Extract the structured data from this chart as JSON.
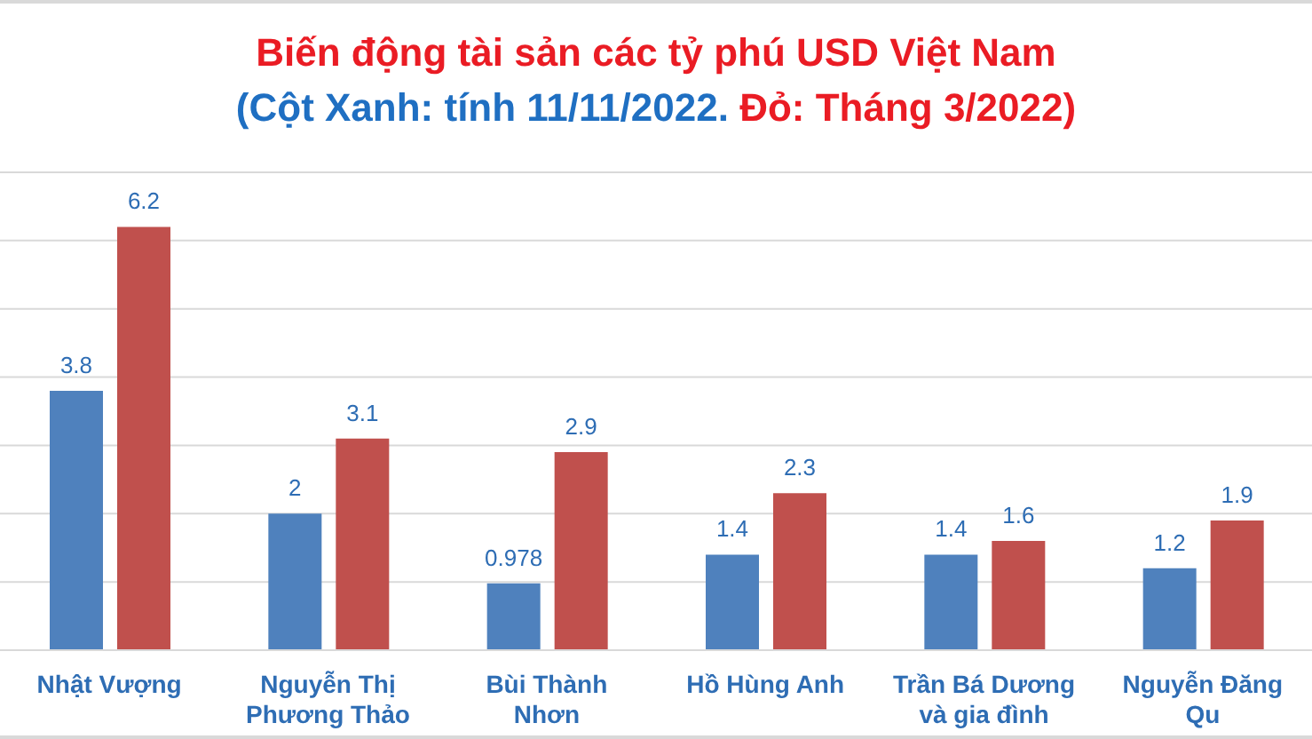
{
  "chart_data": {
    "type": "bar",
    "title": "Biến động tài sản các tỷ phú USD Việt Nam",
    "subtitle": "(Cột Xanh: tính 11/11/2022. Đỏ: Tháng 3/2022)",
    "categories": [
      "Nhật Vượng",
      "Nguyễn Thị Phương Thảo",
      "Bùi Thành Nhơn",
      "Hồ Hùng Anh",
      "Trần Bá Dương và gia đình",
      "Nguyễn Đăng Qu"
    ],
    "series": [
      {
        "color": "#4f81bd",
        "values": [
          3.8,
          2,
          0.978,
          1.4,
          1.4,
          1.2
        ]
      },
      {
        "color": "#c0504d",
        "values": [
          6.2,
          3.1,
          2.9,
          2.3,
          1.6,
          1.9
        ]
      }
    ],
    "ylim": [
      0,
      7
    ],
    "yticks": [
      {
        "value": 0,
        "label": null
      },
      {
        "value": 1,
        "label": null
      },
      {
        "value": 2,
        "label": null
      },
      {
        "value": 3,
        "label": null
      },
      {
        "value": 4,
        "label": null
      },
      {
        "value": 5,
        "label": null
      },
      {
        "value": 6,
        "label": null
      },
      {
        "value": 7,
        "label": null
      }
    ],
    "grid": "y",
    "tick_labels": "x",
    "data_labels": true
  }
}
